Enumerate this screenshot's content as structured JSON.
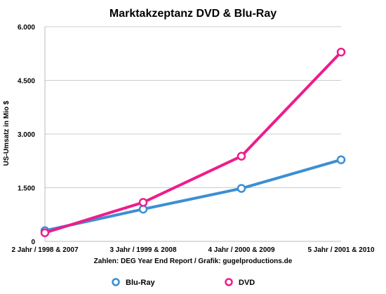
{
  "chart_data": {
    "type": "line",
    "title": "Marktakzeptanz DVD & Blu-Ray",
    "xlabel": "Zahlen: DEG Year End Report / Grafik: gugelproductions.de",
    "ylabel": "US-Umsatz in Mio $",
    "categories": [
      "2 Jahr / 1998 & 2007",
      "3 Jahr / 1999 & 2008",
      "4 Jahr / 2000 & 2009",
      "5 Jahr / 2001 & 2010"
    ],
    "ylim": [
      0,
      6000
    ],
    "yticks": [
      0,
      1500,
      3000,
      4500,
      6000
    ],
    "ytick_labels": [
      "0",
      "1.500",
      "3.000",
      "4.500",
      "6.000"
    ],
    "grid": true,
    "legend_position": "bottom",
    "series": [
      {
        "name": "Blu-Ray",
        "color": "#3b8fd4",
        "values": [
          300,
          900,
          1480,
          2280
        ]
      },
      {
        "name": "DVD",
        "color": "#ee1c8c",
        "values": [
          240,
          1090,
          2380,
          5290
        ]
      }
    ]
  }
}
